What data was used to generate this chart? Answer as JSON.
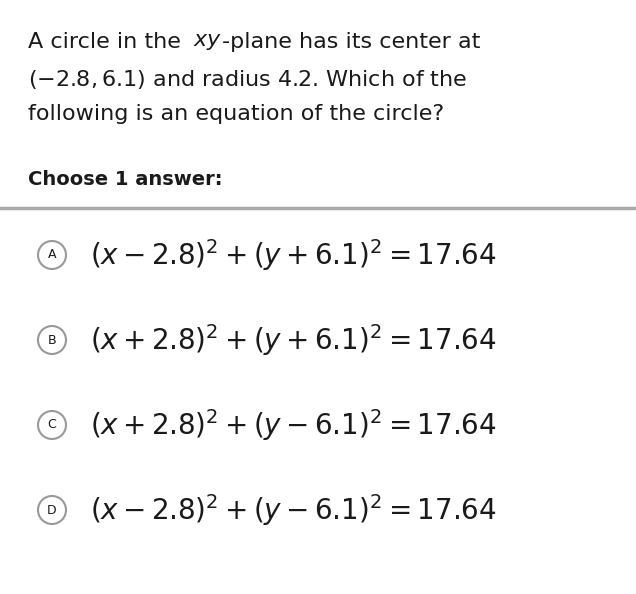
{
  "background_color": "#ffffff",
  "text_color": "#1a1a1a",
  "separator_color": "#aaaaaa",
  "choose_label": "Choose 1 answer:",
  "font_size_question": 16,
  "font_size_options": 20,
  "font_size_choose": 14,
  "font_size_label": 9,
  "circle_edge_color": "#999999",
  "formulas": [
    "$(x - 2.8)^{2} + (y + 6.1)^{2} = 17.64$",
    "$(x + 2.8)^{2} + (y + 6.1)^{2} = 17.64$",
    "$(x + 2.8)^{2} + (y - 6.1)^{2} = 17.64$",
    "$(x - 2.8)^{2} + (y - 6.1)^{2} = 17.64$"
  ],
  "option_labels": [
    "A",
    "B",
    "C",
    "D"
  ]
}
